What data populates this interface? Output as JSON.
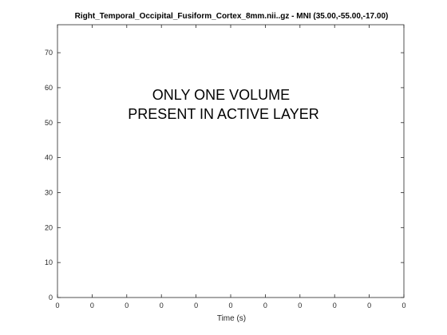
{
  "chart_data": {
    "type": "line",
    "title": "Right_Temporal_Occipital_Fusiform_Cortex_8mm.nii..gz - MNI (35.00,-55.00,-17.00)",
    "xlabel": "Time (s)",
    "ylabel": "",
    "x_ticks": [
      "0",
      "0",
      "0",
      "0",
      "0",
      "0",
      "0",
      "0",
      "0",
      "0",
      "0"
    ],
    "y_ticks": [
      0,
      10,
      20,
      30,
      40,
      50,
      60,
      70
    ],
    "ylim": [
      0,
      78
    ],
    "grid": false,
    "series": []
  },
  "message": {
    "line1": "ONLY ONE VOLUME",
    "line2": "PRESENT IN ACTIVE LAYER"
  },
  "colors": {
    "axis": "#262626",
    "background": "#ffffff"
  }
}
